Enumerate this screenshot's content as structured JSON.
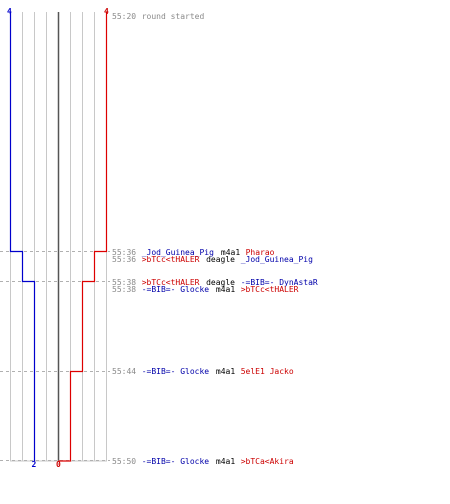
{
  "colors": {
    "team_a": "#0000cc",
    "team_b": "#dd0000",
    "grid": "#c8c8c8",
    "center": "#555555",
    "timestamp": "#8a8a8a"
  },
  "counts": {
    "team_a_start": "4",
    "team_b_start": "4",
    "team_a_end": "2",
    "team_b_end": "0"
  },
  "events": [
    {
      "time": "55:20",
      "parts": [
        {
          "text": "round started",
          "color": "gray"
        }
      ]
    },
    {
      "time": "55:36",
      "parts": [
        {
          "text": "_Jod_Guinea_Pig",
          "color": "blue"
        },
        {
          "text": "m4a1",
          "color": "black"
        },
        {
          "text": "Pharao",
          "color": "red"
        }
      ]
    },
    {
      "time": "55:36",
      "parts": [
        {
          "text": ">bTCc<tHALER",
          "color": "red"
        },
        {
          "text": "deagle",
          "color": "black"
        },
        {
          "text": "_Jod_Guinea_Pig",
          "color": "blue"
        }
      ]
    },
    {
      "time": "55:38",
      "parts": [
        {
          "text": ">bTCc<tHALER",
          "color": "red"
        },
        {
          "text": "deagle",
          "color": "black"
        },
        {
          "text": "-=BIB=- DynAstaR",
          "color": "blue"
        }
      ]
    },
    {
      "time": "55:38",
      "parts": [
        {
          "text": "-=BIB=- Glocke",
          "color": "blue"
        },
        {
          "text": "m4a1",
          "color": "black"
        },
        {
          "text": ">bTCc<tHALER",
          "color": "red"
        }
      ]
    },
    {
      "time": "55:44",
      "parts": [
        {
          "text": "-=BIB=- Glocke",
          "color": "blue"
        },
        {
          "text": "m4a1",
          "color": "black"
        },
        {
          "text": "5elE1 Jacko",
          "color": "red"
        }
      ]
    },
    {
      "time": "55:50",
      "parts": [
        {
          "text": "-=BIB=- Glocke",
          "color": "blue"
        },
        {
          "text": "m4a1",
          "color": "black"
        },
        {
          "text": ">bTCa<Akira",
          "color": "red"
        }
      ]
    }
  ]
}
